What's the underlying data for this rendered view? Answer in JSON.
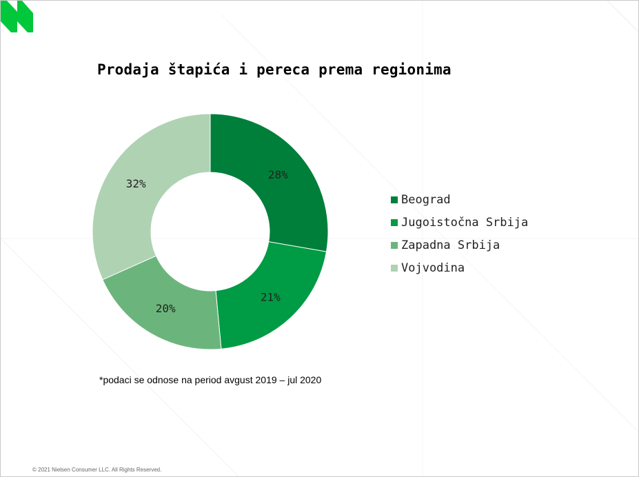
{
  "colors": {
    "beograd": "#007f3a",
    "jugoistocna": "#009b45",
    "zapadna": "#6bb57c",
    "vojvodina": "#afd2b3",
    "logo": "#00c83a"
  },
  "footnote": "*podaci se odnose na period avgust 2019 – jul 2020",
  "copyright": "© 2021 Nielsen Consumer LLC. All Rights Reserved.",
  "chart_data": {
    "type": "pie",
    "title": "Prodaja štapića i pereca prema regionima",
    "categories": [
      "Beograd",
      "Jugoistočna Srbija",
      "Zapadna Srbija",
      "Vojvodina"
    ],
    "values": [
      28,
      21,
      20,
      32
    ],
    "data_labels": [
      "28%",
      "21%",
      "20%",
      "32%"
    ],
    "series": [
      {
        "values": [
          28,
          21,
          20,
          32
        ]
      }
    ],
    "legend_position": "right"
  }
}
